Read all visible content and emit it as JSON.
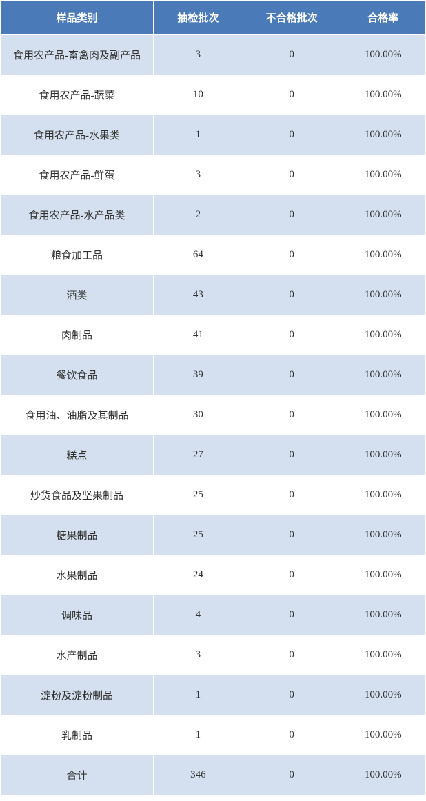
{
  "table": {
    "header_bg": "#4a7ab8",
    "header_text_color": "#ffffff",
    "row_odd_bg": "#d4e0f0",
    "row_even_bg": "#ffffff",
    "border_color": "#ffffff",
    "cell_text_color": "#333333",
    "font_size": 15,
    "columns": [
      {
        "label": "样品类别",
        "width": "36%"
      },
      {
        "label": "抽检批次",
        "width": "21%"
      },
      {
        "label": "不合格批次",
        "width": "23%"
      },
      {
        "label": "合格率",
        "width": "20%"
      }
    ],
    "rows": [
      {
        "category": "食用农产品-畜禽肉及副产品",
        "inspect": "3",
        "fail": "0",
        "rate": "100.00%"
      },
      {
        "category": "食用农产品-蔬菜",
        "inspect": "10",
        "fail": "0",
        "rate": "100.00%"
      },
      {
        "category": "食用农产品-水果类",
        "inspect": "1",
        "fail": "0",
        "rate": "100.00%"
      },
      {
        "category": "食用农产品-鲜蛋",
        "inspect": "3",
        "fail": "0",
        "rate": "100.00%"
      },
      {
        "category": "食用农产品-水产品类",
        "inspect": "2",
        "fail": "0",
        "rate": "100.00%"
      },
      {
        "category": "粮食加工品",
        "inspect": "64",
        "fail": "0",
        "rate": "100.00%"
      },
      {
        "category": "酒类",
        "inspect": "43",
        "fail": "0",
        "rate": "100.00%"
      },
      {
        "category": "肉制品",
        "inspect": "41",
        "fail": "0",
        "rate": "100.00%"
      },
      {
        "category": "餐饮食品",
        "inspect": "39",
        "fail": "0",
        "rate": "100.00%"
      },
      {
        "category": "食用油、油脂及其制品",
        "inspect": "30",
        "fail": "0",
        "rate": "100.00%"
      },
      {
        "category": "糕点",
        "inspect": "27",
        "fail": "0",
        "rate": "100.00%"
      },
      {
        "category": "炒货食品及坚果制品",
        "inspect": "25",
        "fail": "0",
        "rate": "100.00%"
      },
      {
        "category": "糖果制品",
        "inspect": "25",
        "fail": "0",
        "rate": "100.00%"
      },
      {
        "category": "水果制品",
        "inspect": "24",
        "fail": "0",
        "rate": "100.00%"
      },
      {
        "category": "调味品",
        "inspect": "4",
        "fail": "0",
        "rate": "100.00%"
      },
      {
        "category": "水产制品",
        "inspect": "3",
        "fail": "0",
        "rate": "100.00%"
      },
      {
        "category": "淀粉及淀粉制品",
        "inspect": "1",
        "fail": "0",
        "rate": "100.00%"
      },
      {
        "category": "乳制品",
        "inspect": "1",
        "fail": "0",
        "rate": "100.00%"
      },
      {
        "category": "合计",
        "inspect": "346",
        "fail": "0",
        "rate": "100.00%"
      }
    ]
  }
}
